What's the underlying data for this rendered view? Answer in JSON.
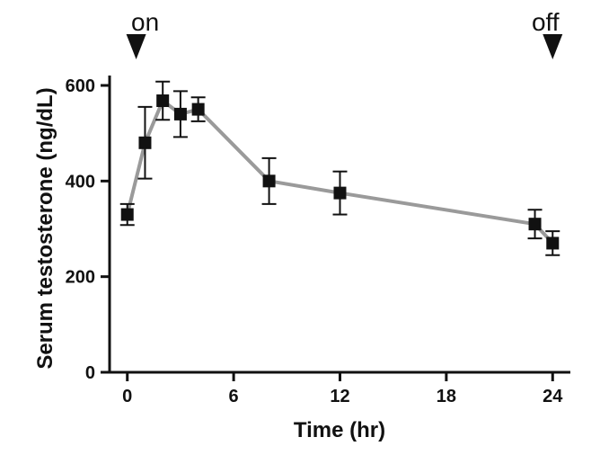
{
  "colors": {
    "background": "#ffffff",
    "axis": "#111111",
    "line": "#9a9a9a",
    "marker": "#111111"
  },
  "chart_data": {
    "type": "line",
    "title": "",
    "xlabel": "Time (hr)",
    "ylabel": "Serum testosterone (ng/dL)",
    "xlim": [
      -1,
      25
    ],
    "ylim": [
      0,
      600
    ],
    "x_ticks": [
      0,
      6,
      12,
      18,
      24
    ],
    "y_ticks": [
      0,
      200,
      400,
      600
    ],
    "x_tick_labels": [
      "0",
      "6",
      "12",
      "18",
      "24"
    ],
    "y_tick_labels": [
      "0",
      "200",
      "400",
      "600"
    ],
    "grid": false,
    "series": [
      {
        "name": "Serum testosterone",
        "x": [
          0,
          1,
          2,
          3,
          4,
          8,
          12,
          23,
          24
        ],
        "y": [
          330,
          480,
          568,
          540,
          550,
          400,
          375,
          310,
          270
        ],
        "error": [
          22,
          75,
          40,
          48,
          25,
          48,
          45,
          30,
          25
        ]
      }
    ],
    "annotations": [
      {
        "label": "on",
        "x": 0.5,
        "type": "arrow-down"
      },
      {
        "label": "off",
        "x": 24,
        "type": "arrow-down"
      }
    ]
  }
}
